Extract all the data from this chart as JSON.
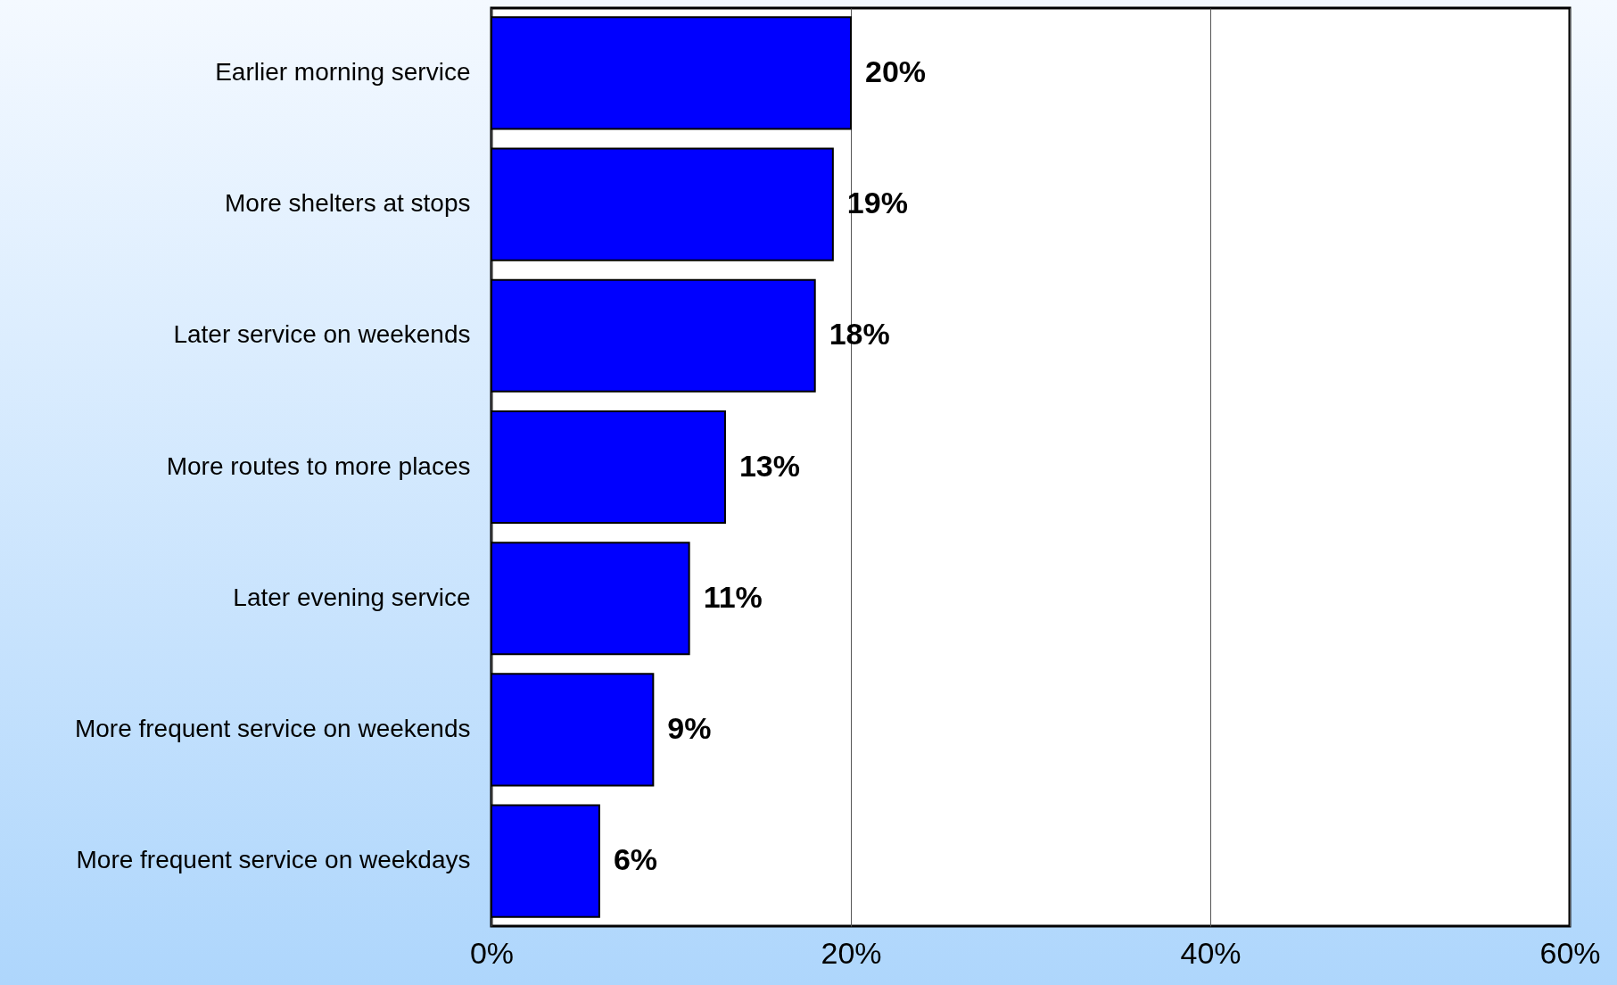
{
  "chart_data": {
    "type": "bar",
    "orientation": "horizontal",
    "categories": [
      "Earlier morning service",
      "More shelters at stops",
      "Later service on weekends",
      "More routes to more places",
      "Later evening service",
      "More frequent service on weekends",
      "More frequent service on weekdays"
    ],
    "values": [
      20,
      19,
      18,
      13,
      11,
      9,
      6
    ],
    "value_labels": [
      "20%",
      "19%",
      "18%",
      "13%",
      "11%",
      "9%",
      "6%"
    ],
    "color": "#0000ff",
    "xlim": [
      0,
      60
    ],
    "xticks": [
      {
        "value": 0,
        "label": "0%"
      },
      {
        "value": 20,
        "label": "20%"
      },
      {
        "value": 40,
        "label": "40%"
      },
      {
        "value": 60,
        "label": "60%"
      }
    ],
    "grid": "x"
  }
}
